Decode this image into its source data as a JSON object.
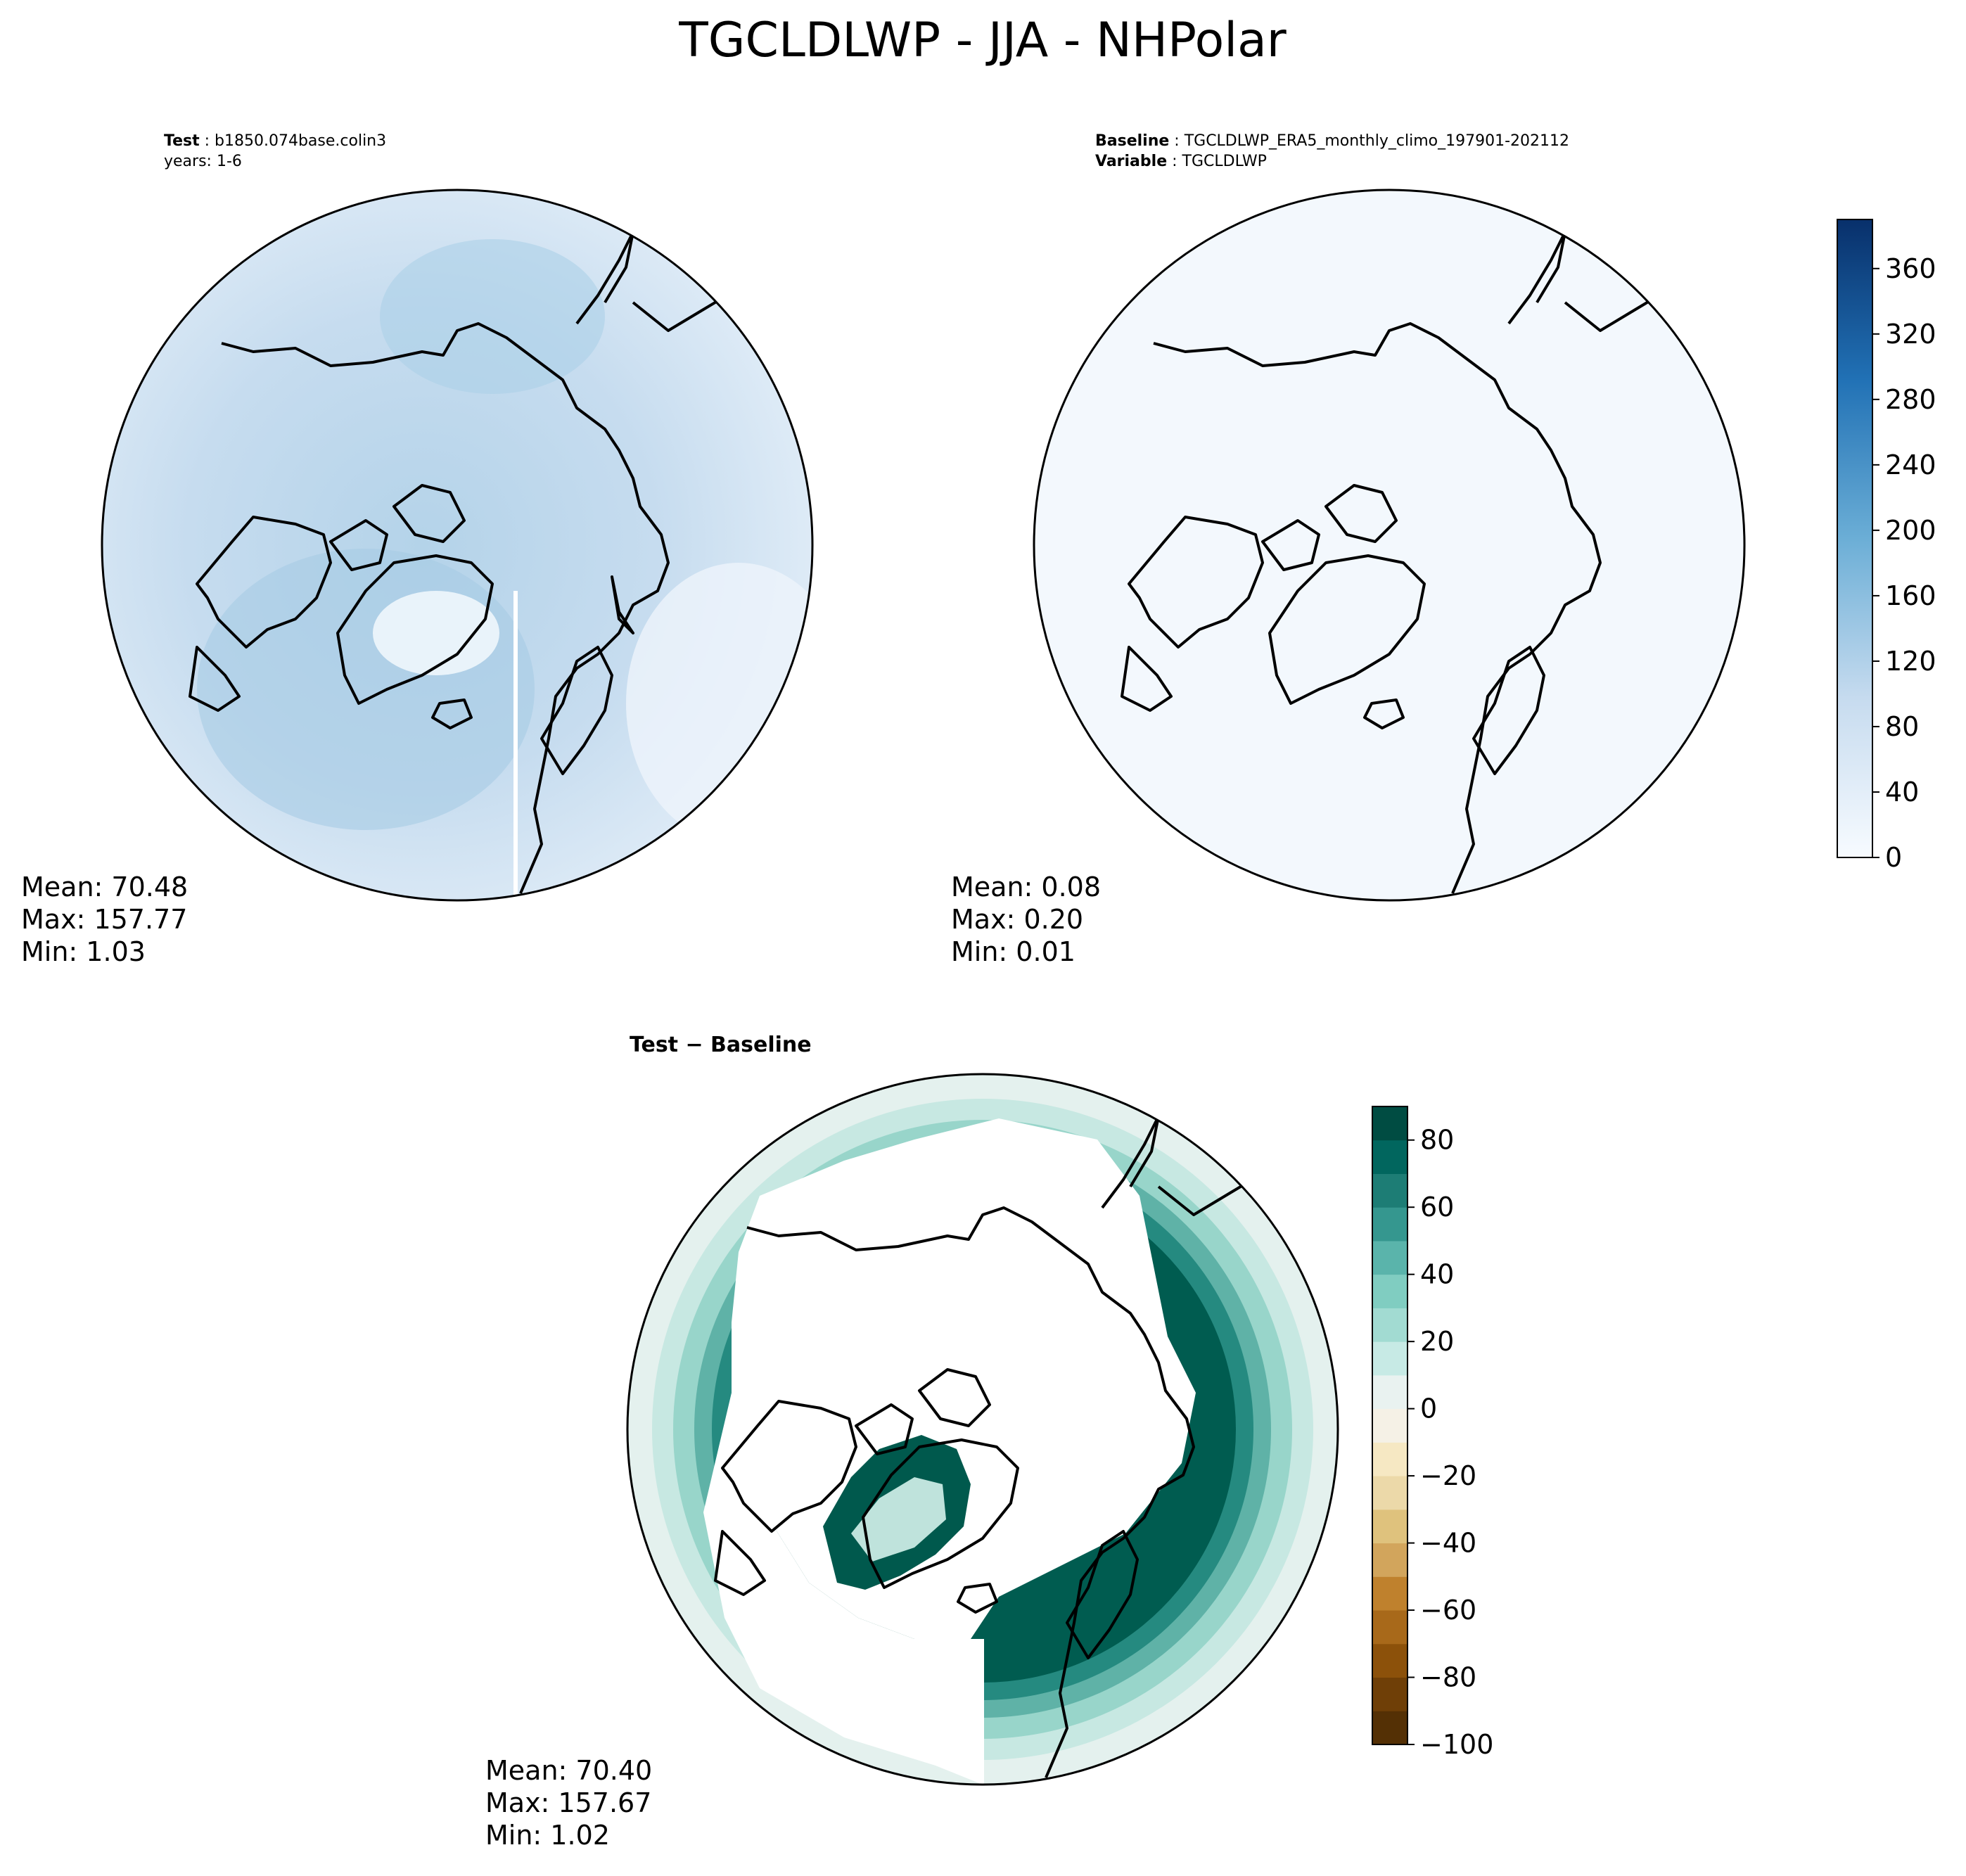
{
  "figure": {
    "title": "TGCLDLWP - JJA - NHPolar"
  },
  "colors": {
    "blues_low": "#f7fbff",
    "blues_mid": "#6baed6",
    "blues_high": "#08306b",
    "brbg_neg_end": "#543005",
    "brbg_zero": "#f5f5f5",
    "brbg_pos_end": "#003c30",
    "coastline": "#000000"
  },
  "chart_data": [
    {
      "type": "heatmap",
      "projection": "north-polar-stereographic",
      "panel": "test",
      "header": {
        "label": "Test",
        "value": "b1850.074base.colin3",
        "line2": "years: 1-6"
      },
      "stats": {
        "mean": "Mean: 70.48",
        "max": "Max: 157.77",
        "min": "Min:  1.03"
      },
      "colormap": "Blues",
      "field_description_values": {
        "mean": 70.48,
        "max": 157.77,
        "min": 1.03
      }
    },
    {
      "type": "heatmap",
      "projection": "north-polar-stereographic",
      "panel": "baseline",
      "header": {
        "label": "Baseline",
        "value": "TGCLDLWP_ERA5_monthly_climo_197901-202112",
        "label2": "Variable",
        "value2": "TGCLDLWP"
      },
      "stats": {
        "mean": "Mean:  0.08",
        "max": "Max:  0.20",
        "min": "Min:  0.01"
      },
      "colormap": "Blues",
      "colorbar": {
        "range": [
          0,
          390
        ],
        "ticks": [
          0,
          40,
          80,
          120,
          160,
          200,
          240,
          280,
          320,
          360
        ],
        "tick_labels": [
          "0",
          "40",
          "80",
          "120",
          "160",
          "200",
          "240",
          "280",
          "320",
          "360"
        ]
      }
    },
    {
      "type": "heatmap",
      "projection": "north-polar-stereographic",
      "panel": "difference",
      "header": {
        "label": "Test − Baseline"
      },
      "stats": {
        "mean": "Mean: 70.40",
        "max": "Max: 157.67",
        "min": "Min:  1.02"
      },
      "colormap": "BrBG",
      "colorbar": {
        "range": [
          -100,
          90
        ],
        "ticks": [
          -100,
          -80,
          -60,
          -40,
          -20,
          0,
          20,
          40,
          60,
          80
        ],
        "tick_labels": [
          "−100",
          "−80",
          "−60",
          "−40",
          "−20",
          "0",
          "20",
          "40",
          "60",
          "80"
        ]
      }
    }
  ]
}
